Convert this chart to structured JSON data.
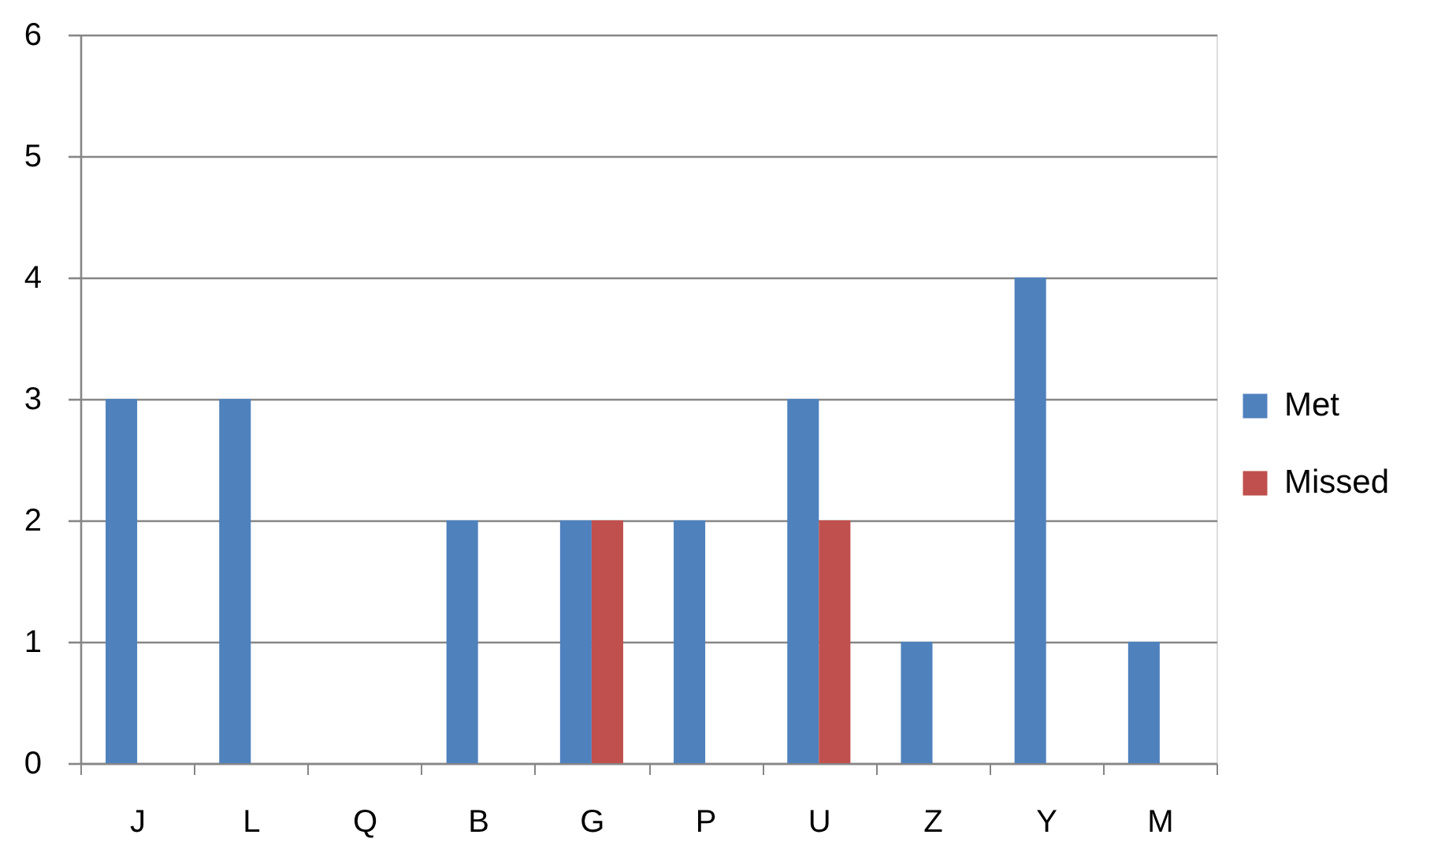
{
  "chart_data": {
    "type": "bar",
    "categories": [
      "J",
      "L",
      "Q",
      "B",
      "G",
      "P",
      "U",
      "Z",
      "Y",
      "M"
    ],
    "series": [
      {
        "name": "Met",
        "color": "#4f81bd",
        "values": [
          3,
          3,
          0,
          2,
          2,
          2,
          3,
          1,
          4,
          1
        ]
      },
      {
        "name": "Missed",
        "color": "#c0504d",
        "values": [
          0,
          0,
          0,
          0,
          2,
          0,
          2,
          0,
          0,
          0
        ]
      }
    ],
    "ylim": [
      0,
      6
    ],
    "yticks": [
      0,
      1,
      2,
      3,
      4,
      5,
      6
    ],
    "grid": "y",
    "legend": "right"
  }
}
